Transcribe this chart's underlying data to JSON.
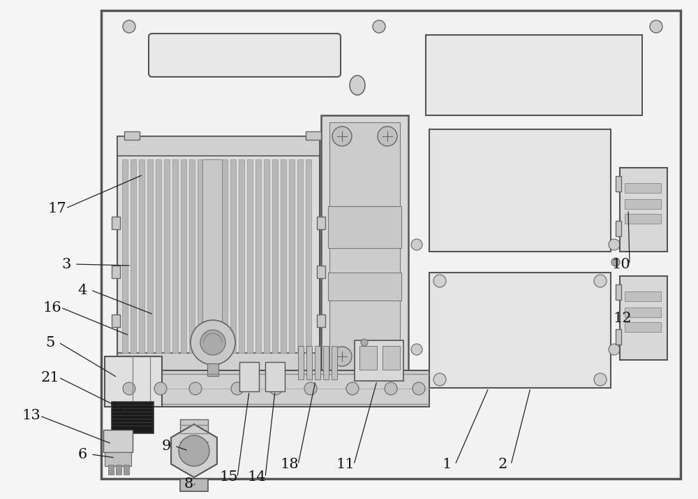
{
  "bg": "#f5f5f5",
  "border_fc": "#f0f0f0",
  "border_ec": "#555555",
  "gray1": "#e8e8e8",
  "gray2": "#d8d8d8",
  "gray3": "#c8c8c8",
  "gray4": "#b0b0b0",
  "dark": "#444444",
  "black": "#222222",
  "white": "#ffffff",
  "figure_width": 10.0,
  "figure_height": 7.14
}
